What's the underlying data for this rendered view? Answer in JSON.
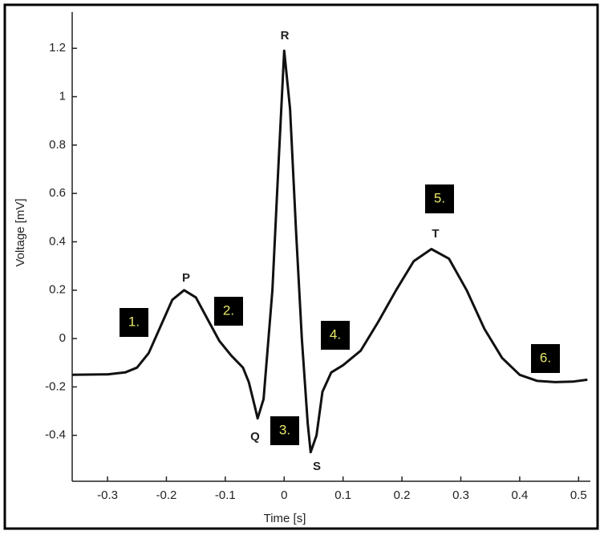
{
  "chart_data": {
    "type": "line",
    "xlabel": "Time [s]",
    "ylabel": "Voltage [mV]",
    "x": [
      -0.36,
      -0.3,
      -0.27,
      -0.25,
      -0.23,
      -0.21,
      -0.19,
      -0.17,
      -0.15,
      -0.13,
      -0.11,
      -0.09,
      -0.07,
      -0.06,
      -0.05,
      -0.045,
      -0.035,
      -0.02,
      -0.01,
      0,
      0.01,
      0.02,
      0.03,
      0.04,
      0.045,
      0.055,
      0.065,
      0.08,
      0.1,
      0.13,
      0.16,
      0.19,
      0.22,
      0.25,
      0.28,
      0.31,
      0.34,
      0.37,
      0.4,
      0.43,
      0.46,
      0.49,
      0.515
    ],
    "values": [
      -0.15,
      -0.148,
      -0.14,
      -0.12,
      -0.06,
      0.05,
      0.16,
      0.2,
      0.17,
      0.08,
      -0.01,
      -0.07,
      -0.12,
      -0.18,
      -0.28,
      -0.33,
      -0.25,
      0.2,
      0.7,
      1.19,
      0.95,
      0.45,
      0.0,
      -0.35,
      -0.47,
      -0.4,
      -0.22,
      -0.14,
      -0.11,
      -0.05,
      0.07,
      0.2,
      0.32,
      0.37,
      0.33,
      0.2,
      0.04,
      -0.08,
      -0.15,
      -0.175,
      -0.18,
      -0.178,
      -0.17
    ],
    "color": "#111111",
    "xlim": [
      -0.36,
      0.52
    ],
    "xticks": [
      -0.3,
      -0.2,
      -0.1,
      0,
      0.1,
      0.2,
      0.3,
      0.4,
      0.5
    ],
    "ylim": [
      -0.59,
      1.35
    ],
    "yticks": [
      -0.4,
      -0.2,
      0,
      0.2,
      0.4,
      0.6,
      0.8,
      1,
      1.2
    ],
    "wave_labels": [
      "P",
      "Q",
      "R",
      "S",
      "T"
    ],
    "segment_labels": [
      "1.",
      "2.",
      "3.",
      "4.",
      "5.",
      "6."
    ]
  }
}
